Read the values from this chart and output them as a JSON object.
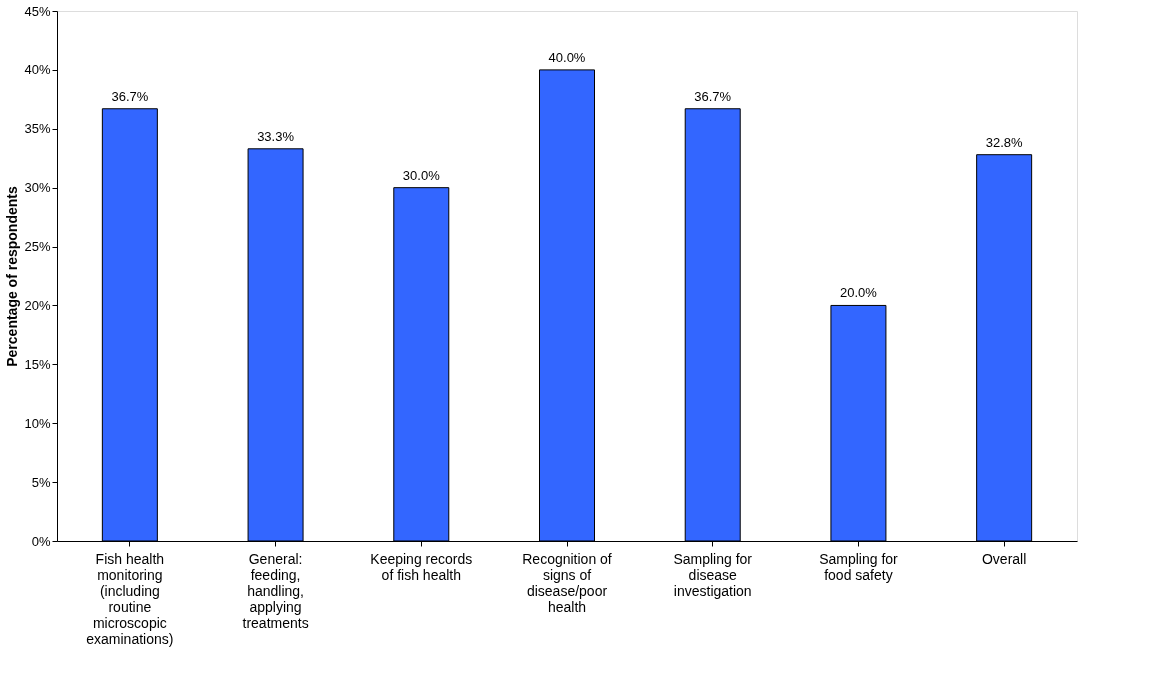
{
  "chart_data": {
    "type": "bar",
    "ylabel": "Percentage of respondents",
    "categories": [
      "Fish health monitoring (including routine microscopic examinations)",
      "General: feeding, handling, applying treatments",
      "Keeping records of fish health",
      "Recognition of signs of disease/poor health",
      "Sampling for disease investigation",
      "Sampling for food safety",
      "Overall"
    ],
    "values": [
      36.7,
      33.3,
      30.0,
      40.0,
      36.7,
      20.0,
      32.8
    ],
    "value_labels": [
      "36.7%",
      "33.3%",
      "30.0%",
      "40.0%",
      "36.7%",
      "20.0%",
      "32.8%"
    ],
    "color": "#3366ff",
    "ylim": [
      0,
      45
    ],
    "yticks": [
      {
        "value": 0,
        "label": "0%"
      },
      {
        "value": 5,
        "label": "5%"
      },
      {
        "value": 10,
        "label": "10%"
      },
      {
        "value": 15,
        "label": "15%"
      },
      {
        "value": 20,
        "label": "20%"
      },
      {
        "value": 25,
        "label": "25%"
      },
      {
        "value": 30,
        "label": "30%"
      },
      {
        "value": 35,
        "label": "35%"
      },
      {
        "value": 40,
        "label": "40%"
      },
      {
        "value": 45,
        "label": "45%"
      }
    ],
    "grid": false
  }
}
